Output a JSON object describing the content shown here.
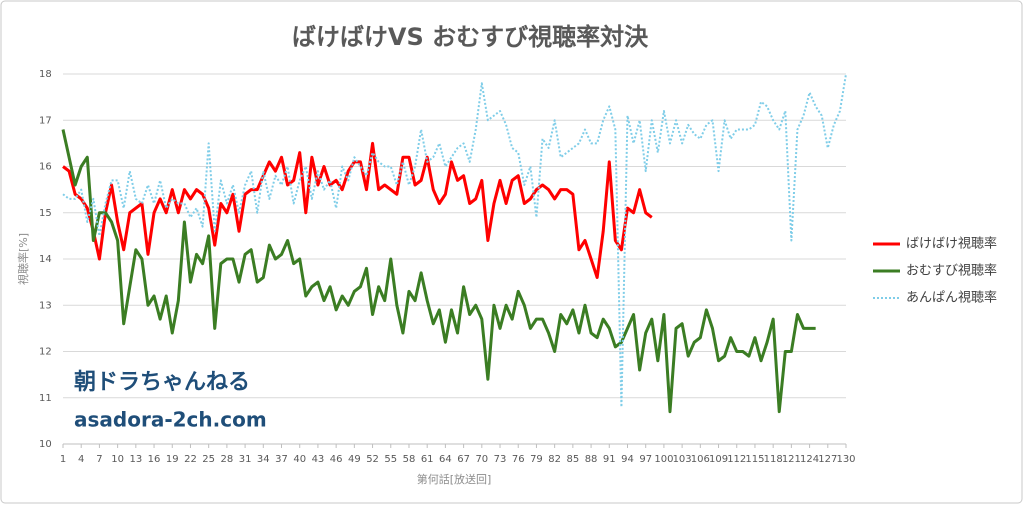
{
  "chart_data": {
    "type": "line",
    "title": "ばけばけVS おむすび視聴率対決",
    "xlabel": "第何話[放送回]",
    "ylabel": "視聴率[%]",
    "watermark": [
      "朝ドラちゃんねる",
      "asadora-2ch.com"
    ],
    "x": [
      1,
      2,
      3,
      4,
      5,
      6,
      7,
      8,
      9,
      10,
      11,
      12,
      13,
      14,
      15,
      16,
      17,
      18,
      19,
      20,
      21,
      22,
      23,
      24,
      25,
      26,
      27,
      28,
      29,
      30,
      31,
      32,
      33,
      34,
      35,
      36,
      37,
      38,
      39,
      40,
      41,
      42,
      43,
      44,
      45,
      46,
      47,
      48,
      49,
      50,
      51,
      52,
      53,
      54,
      55,
      56,
      57,
      58,
      59,
      60,
      61,
      62,
      63,
      64,
      65,
      66,
      67,
      68,
      69,
      70,
      71,
      72,
      73,
      74,
      75,
      76,
      77,
      78,
      79,
      80,
      81,
      82,
      83,
      84,
      85,
      86,
      87,
      88,
      89,
      90,
      91,
      92,
      93,
      94,
      95,
      96,
      97,
      98,
      99,
      100,
      101,
      102,
      103,
      104,
      105,
      106,
      107,
      108,
      109,
      110,
      111,
      112,
      113,
      114,
      115,
      116,
      117,
      118,
      119,
      120,
      121,
      122,
      123,
      124,
      125,
      126,
      127,
      128,
      129,
      130
    ],
    "xlim": [
      1,
      130
    ],
    "xticks": [
      1,
      4,
      7,
      10,
      13,
      16,
      19,
      22,
      25,
      28,
      31,
      34,
      37,
      40,
      43,
      46,
      49,
      52,
      55,
      58,
      61,
      64,
      67,
      70,
      73,
      76,
      79,
      82,
      85,
      88,
      91,
      94,
      97,
      100,
      103,
      106,
      109,
      112,
      115,
      118,
      121,
      124,
      127,
      130
    ],
    "ylim": [
      10,
      18
    ],
    "yticks": [
      10,
      11,
      12,
      13,
      14,
      15,
      16,
      17,
      18
    ],
    "grid": true,
    "legend": "right",
    "series": [
      {
        "name": "ばけばけ視聴率",
        "color": "#ff0000",
        "linestyle": "solid",
        "values": [
          16.0,
          15.9,
          15.4,
          15.3,
          15.1,
          14.6,
          14.0,
          15.0,
          15.6,
          14.8,
          14.2,
          15.0,
          15.1,
          15.2,
          14.1,
          15.0,
          15.3,
          15.0,
          15.5,
          15.0,
          15.5,
          15.3,
          15.5,
          15.4,
          15.1,
          14.3,
          15.2,
          15.0,
          15.4,
          14.6,
          15.4,
          15.5,
          15.5,
          15.8,
          16.1,
          15.9,
          16.2,
          15.6,
          15.7,
          16.3,
          15.0,
          16.2,
          15.6,
          16.0,
          15.6,
          15.7,
          15.5,
          15.9,
          16.1,
          16.1,
          15.5,
          16.5,
          15.5,
          15.6,
          15.5,
          15.4,
          16.2,
          16.2,
          15.6,
          15.7,
          16.2,
          15.5,
          15.2,
          15.4,
          16.1,
          15.7,
          15.8,
          15.2,
          15.3,
          15.7,
          14.4,
          15.2,
          15.7,
          15.2,
          15.7,
          15.8,
          15.2,
          15.3,
          15.5,
          15.6,
          15.5,
          15.3,
          15.5,
          15.5,
          15.4,
          14.2,
          14.4,
          14.0,
          13.6,
          14.6,
          16.1,
          14.4,
          14.2,
          15.1,
          15.0,
          15.5,
          15.0,
          14.9,
          null,
          null,
          null,
          null,
          null,
          null,
          null,
          null,
          null,
          null,
          null,
          null,
          null,
          null,
          null,
          null,
          null,
          null,
          null,
          null,
          null,
          null,
          null,
          null,
          null,
          null,
          null,
          null,
          null,
          null,
          null,
          null
        ]
      },
      {
        "name": "おむすび視聴率",
        "color": "#3b7d23",
        "linestyle": "solid",
        "values": [
          16.8,
          16.2,
          15.6,
          16.0,
          16.2,
          14.4,
          15.0,
          15.0,
          14.8,
          14.4,
          12.6,
          13.4,
          14.2,
          14.0,
          13.0,
          13.2,
          12.7,
          13.2,
          12.4,
          13.1,
          14.8,
          13.5,
          14.1,
          13.9,
          14.5,
          12.5,
          13.9,
          14.0,
          14.0,
          13.5,
          14.1,
          14.2,
          13.5,
          13.6,
          14.3,
          14.0,
          14.1,
          14.4,
          13.9,
          14.0,
          13.2,
          13.4,
          13.5,
          13.1,
          13.4,
          12.9,
          13.2,
          13.0,
          13.3,
          13.4,
          13.8,
          12.8,
          13.4,
          13.1,
          14.0,
          13.0,
          12.4,
          13.3,
          13.1,
          13.7,
          13.1,
          12.6,
          12.9,
          12.2,
          12.9,
          12.4,
          13.4,
          12.8,
          13.0,
          12.7,
          11.4,
          13.0,
          12.5,
          13.0,
          12.7,
          13.3,
          13.0,
          12.5,
          12.7,
          12.7,
          12.4,
          12.0,
          12.8,
          12.6,
          12.9,
          12.4,
          13.0,
          12.4,
          12.3,
          12.7,
          12.5,
          12.1,
          12.2,
          12.5,
          12.8,
          11.6,
          12.4,
          12.7,
          11.8,
          12.8,
          10.7,
          12.5,
          12.6,
          11.9,
          12.2,
          12.3,
          12.9,
          12.5,
          11.8,
          11.9,
          12.3,
          12.0,
          12.0,
          11.9,
          12.3,
          11.8,
          12.2,
          12.7,
          10.7,
          12.0,
          12.0,
          12.8,
          12.5,
          12.5,
          12.5,
          null,
          null,
          null,
          null,
          null
        ]
      },
      {
        "name": "あんぱん視聴率",
        "color": "#7fcde8",
        "linestyle": "dotted",
        "values": [
          15.4,
          15.3,
          15.3,
          15.5,
          14.8,
          15.3,
          14.5,
          15.2,
          15.7,
          15.7,
          15.1,
          15.9,
          15.3,
          15.2,
          15.6,
          15.2,
          15.7,
          15.1,
          15.3,
          15.2,
          15.2,
          14.9,
          15.1,
          14.7,
          16.5,
          14.6,
          15.7,
          15.2,
          15.6,
          15.0,
          15.6,
          15.9,
          15.0,
          15.9,
          15.3,
          15.8,
          15.6,
          16.0,
          15.2,
          15.7,
          16.0,
          15.3,
          15.9,
          15.5,
          15.7,
          15.1,
          16.0,
          15.7,
          16.2,
          16.0,
          15.8,
          16.3,
          16.1,
          16.0,
          16.0,
          15.6,
          16.1,
          15.6,
          16.0,
          16.8,
          16.1,
          16.2,
          16.5,
          16.0,
          16.2,
          16.4,
          16.5,
          16.1,
          16.8,
          17.8,
          17.0,
          17.1,
          17.2,
          16.9,
          16.4,
          16.3,
          15.6,
          16.0,
          14.9,
          16.6,
          16.4,
          17.0,
          16.2,
          16.3,
          16.4,
          16.5,
          16.8,
          16.5,
          16.5,
          17.0,
          17.3,
          16.8,
          10.8,
          17.1,
          16.5,
          17.0,
          15.9,
          17.0,
          16.3,
          17.2,
          16.5,
          17.0,
          16.5,
          16.9,
          16.7,
          16.6,
          16.9,
          17.0,
          15.9,
          17.0,
          16.6,
          16.8,
          16.8,
          16.8,
          16.9,
          17.4,
          17.3,
          17.0,
          16.8,
          17.2,
          14.4,
          16.8,
          17.1,
          17.6,
          17.3,
          17.1,
          16.4,
          16.9,
          17.2,
          18.0
        ]
      }
    ]
  }
}
